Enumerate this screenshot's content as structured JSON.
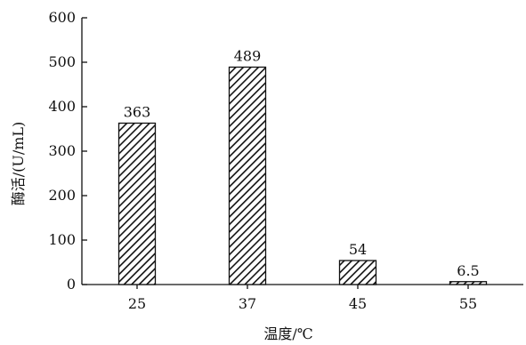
{
  "chart_data": {
    "type": "bar",
    "categories": [
      "25",
      "37",
      "45",
      "55"
    ],
    "values": [
      363,
      489,
      54,
      6.5
    ],
    "data_labels": [
      "363",
      "489",
      "54",
      "6.5"
    ],
    "xlabel": "温度/℃",
    "ylabel": "酶活/(U/mL)",
    "ylim": [
      0,
      600
    ],
    "yticks": [
      0,
      100,
      200,
      300,
      400,
      500,
      600
    ],
    "grid": false,
    "bar_fill": "diagonal-hatch",
    "colors": {
      "bar_edge": "#111111",
      "hatch": "#111111",
      "axis": "#111111"
    }
  }
}
